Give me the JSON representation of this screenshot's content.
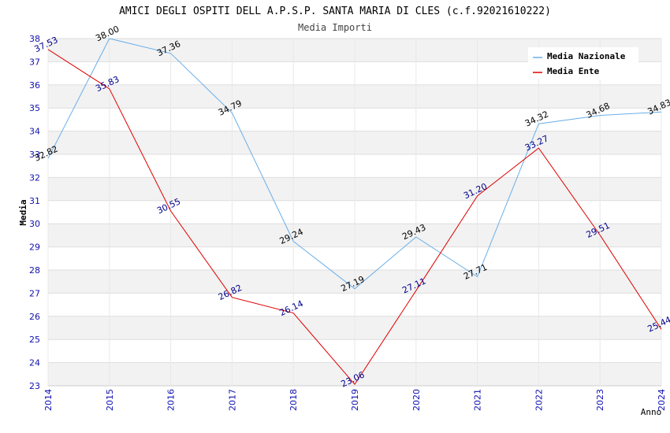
{
  "chart_data": {
    "type": "line",
    "title": "AMICI DEGLI OSPITI DELL A.P.S.P. SANTA MARIA DI CLES (c.f.92021610222)",
    "subtitle": "Media Importi",
    "xlabel": "Anno",
    "ylabel": "Media",
    "x": [
      "2014",
      "2015",
      "2016",
      "2017",
      "2018",
      "2019",
      "2020",
      "2021",
      "2022",
      "2023",
      "2024"
    ],
    "ylim": [
      23,
      38
    ],
    "yticks": [
      "23",
      "24",
      "25",
      "26",
      "27",
      "28",
      "29",
      "30",
      "31",
      "32",
      "33",
      "34",
      "35",
      "36",
      "37",
      "38"
    ],
    "grid": "horizontal alternating bands",
    "legend_position": "top-right",
    "series": [
      {
        "name": "Media Nazionale",
        "color": "#6aaee8",
        "label_color": "#000000",
        "values": [
          32.82,
          38.0,
          37.36,
          34.79,
          29.24,
          27.19,
          29.43,
          27.71,
          34.32,
          34.68,
          34.83
        ],
        "labels": [
          "32.82",
          "38.00",
          "37.36",
          "34.79",
          "29.24",
          "27.19",
          "29.43",
          "27.71",
          "34.32",
          "34.68",
          "34.83"
        ]
      },
      {
        "name": "Media Ente",
        "color": "#e00000",
        "label_color": "#00008b",
        "values": [
          37.53,
          35.83,
          30.55,
          26.82,
          26.14,
          23.06,
          27.11,
          31.2,
          33.27,
          29.51,
          25.44
        ],
        "labels": [
          "37.53",
          "35.83",
          "30.55",
          "26.82",
          "26.14",
          "23.06",
          "27.11",
          "31.20",
          "33.27",
          "29.51",
          "25.44"
        ]
      }
    ]
  }
}
